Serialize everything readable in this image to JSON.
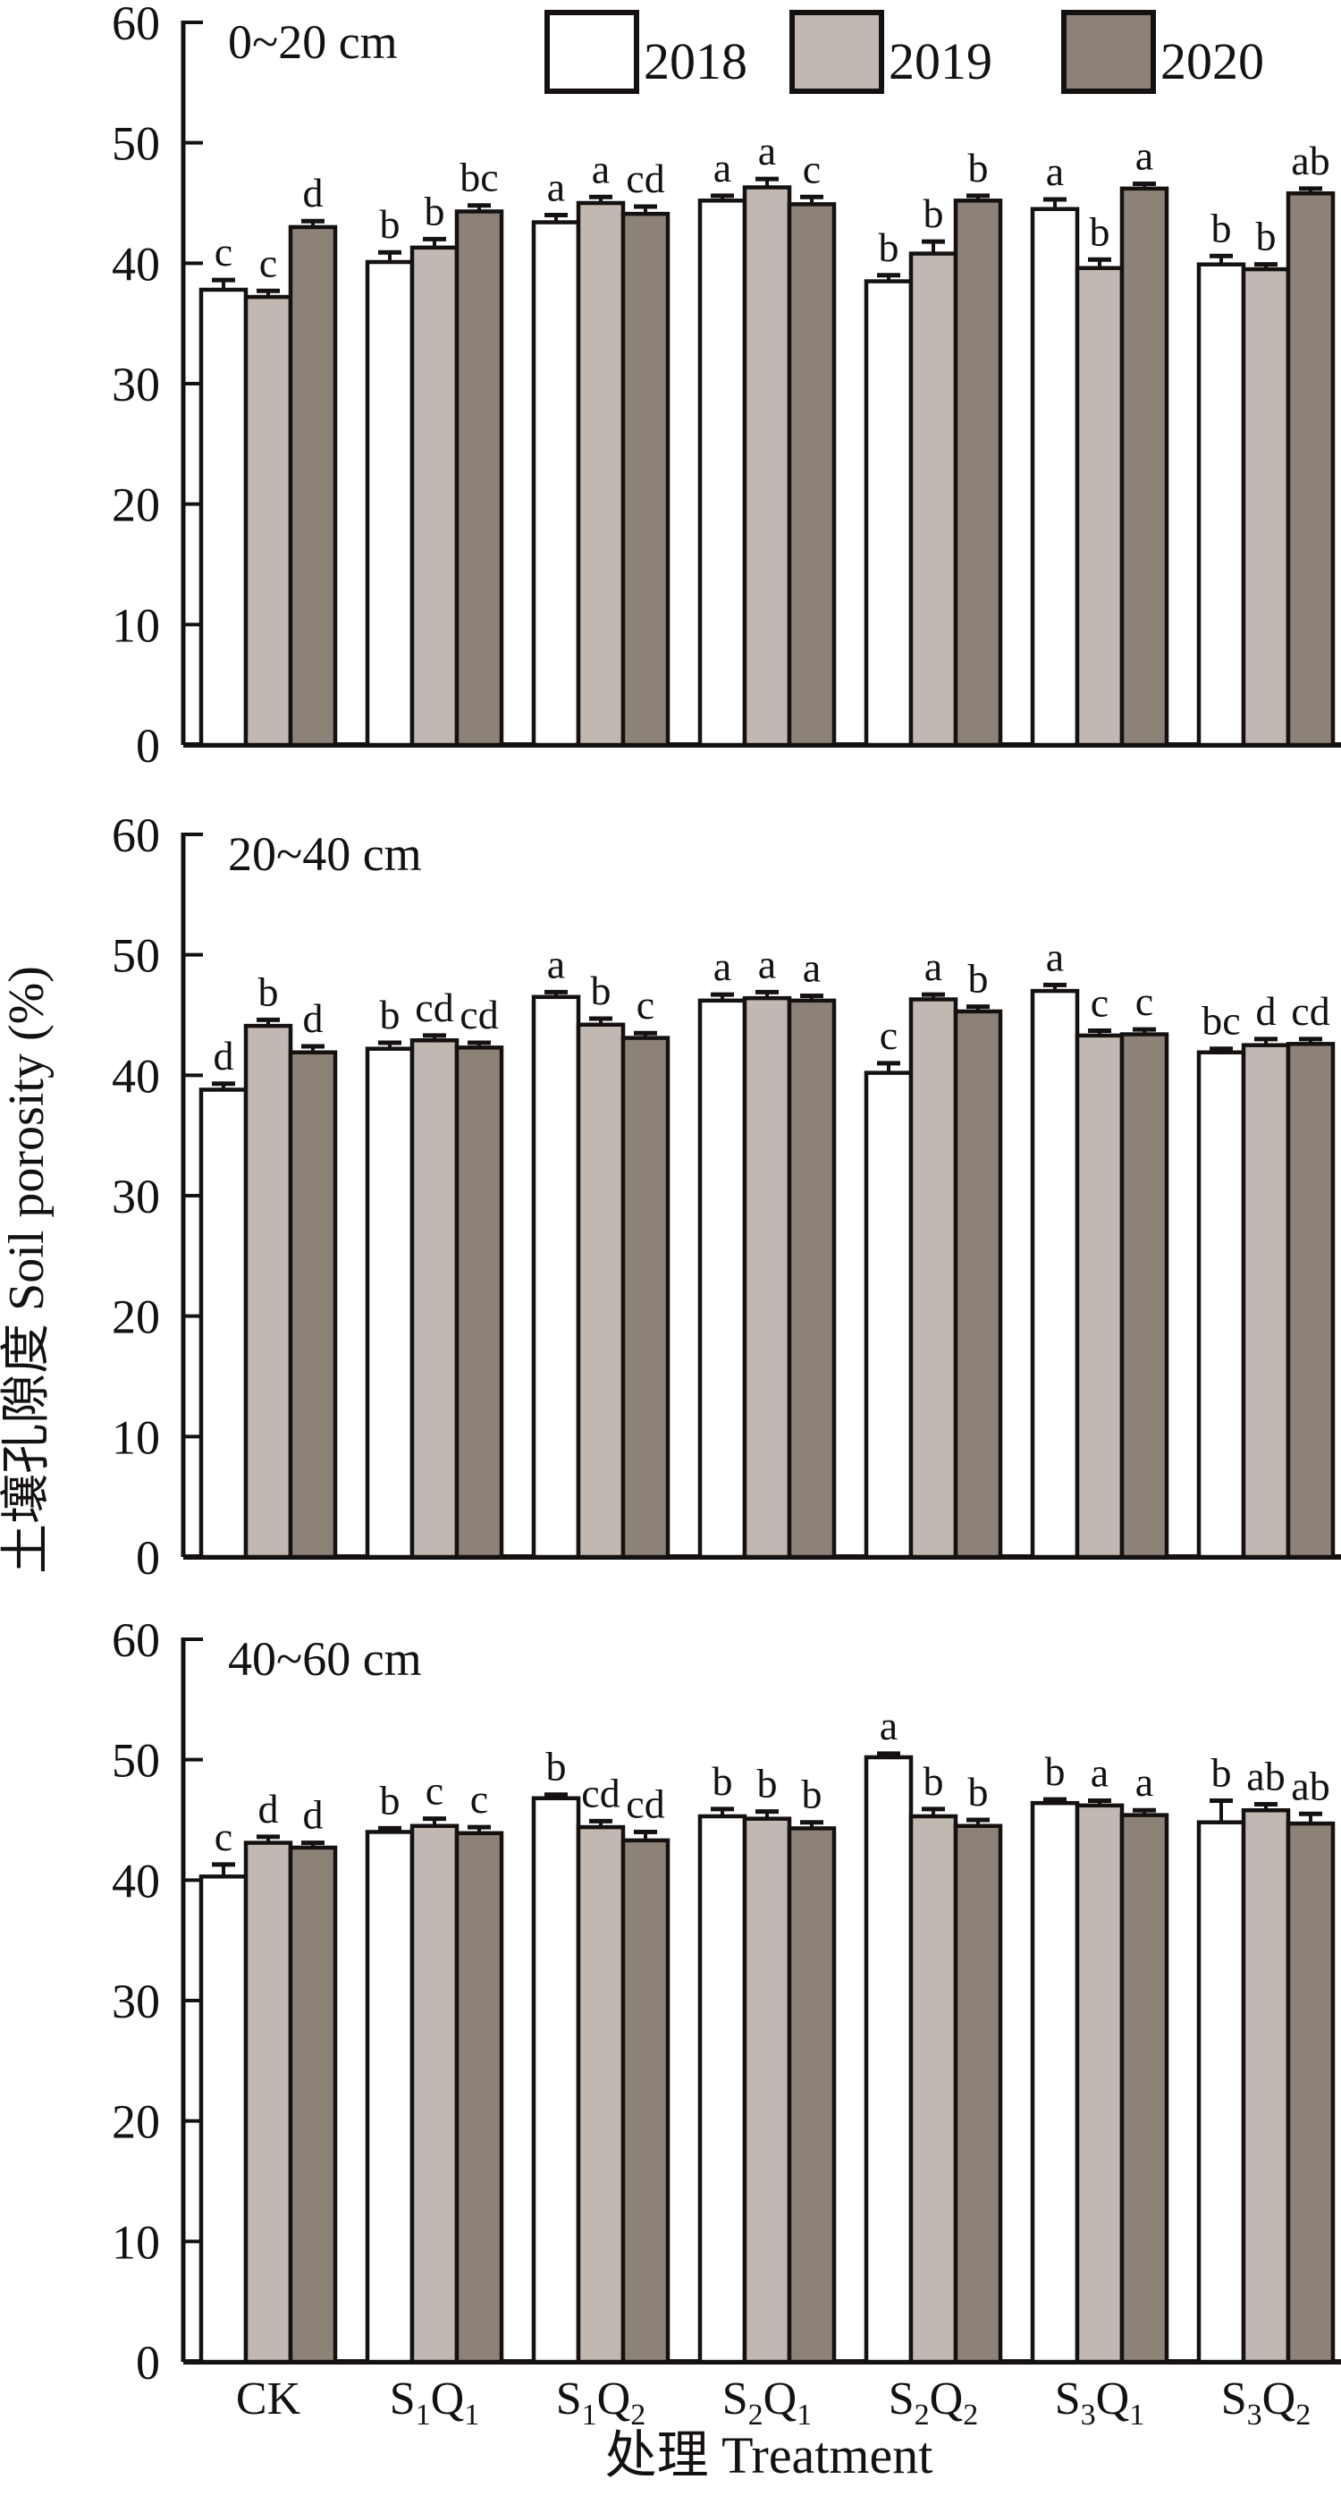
{
  "figure": {
    "y_axis_label": "土壤孔隙度 Soil porosity (%)",
    "x_axis_label": "处理 Treatment"
  },
  "chart_data": {
    "type": "bar",
    "grid": false,
    "legend_position": "top",
    "ylim": [
      0,
      60
    ],
    "yticks": [
      0,
      10,
      20,
      30,
      40,
      50,
      60
    ],
    "ylabel": "土壤孔隙度 Soil porosity (%)",
    "xlabel": "处理 Treatment",
    "categories": [
      "CK",
      "S1Q1",
      "S1Q2",
      "S2Q1",
      "S2Q2",
      "S3Q1",
      "S3Q2"
    ],
    "series_meta": [
      {
        "name": "2018",
        "color": "#ffffff"
      },
      {
        "name": "2019",
        "color": "#c1b8b1"
      },
      {
        "name": "2020",
        "color": "#8d8278"
      }
    ],
    "panels": [
      {
        "title": "0~20 cm",
        "show_legend": true,
        "series": [
          {
            "name": "2018",
            "values": [
              37.8,
              40.1,
              43.4,
              45.2,
              38.5,
              44.5,
              39.9
            ],
            "errors": [
              0.8,
              0.8,
              0.6,
              0.4,
              0.5,
              0.8,
              0.7
            ],
            "letters": [
              "c",
              "b",
              "a",
              "a",
              "b",
              "a",
              "b"
            ]
          },
          {
            "name": "2019",
            "values": [
              37.2,
              41.3,
              45.0,
              46.3,
              40.8,
              39.6,
              39.5
            ],
            "errors": [
              0.5,
              0.7,
              0.5,
              0.7,
              1.0,
              0.7,
              0.4
            ],
            "letters": [
              "c",
              "b",
              "a",
              "a",
              "b",
              "b",
              "b"
            ]
          },
          {
            "name": "2020",
            "values": [
              43.0,
              44.3,
              44.1,
              44.9,
              45.2,
              46.2,
              45.8
            ],
            "errors": [
              0.5,
              0.5,
              0.6,
              0.6,
              0.4,
              0.4,
              0.4
            ],
            "letters": [
              "d",
              "bc",
              "cd",
              "c",
              "b",
              "a",
              "ab"
            ]
          }
        ]
      },
      {
        "title": "20~40 cm",
        "show_legend": false,
        "series": [
          {
            "name": "2018",
            "values": [
              38.8,
              42.2,
              46.5,
              46.2,
              40.2,
              47.0,
              41.9
            ],
            "errors": [
              0.5,
              0.5,
              0.4,
              0.5,
              0.8,
              0.5,
              0.3
            ],
            "letters": [
              "d",
              "b",
              "a",
              "a",
              "c",
              "a",
              "bc"
            ]
          },
          {
            "name": "2019",
            "values": [
              44.1,
              42.9,
              44.2,
              46.4,
              46.3,
              43.3,
              42.5
            ],
            "errors": [
              0.5,
              0.4,
              0.5,
              0.5,
              0.4,
              0.4,
              0.5
            ],
            "letters": [
              "b",
              "cd",
              "b",
              "a",
              "a",
              "c",
              "d"
            ]
          },
          {
            "name": "2020",
            "values": [
              41.9,
              42.3,
              43.1,
              46.2,
              45.3,
              43.4,
              42.6
            ],
            "errors": [
              0.5,
              0.4,
              0.4,
              0.4,
              0.4,
              0.4,
              0.4
            ],
            "letters": [
              "d",
              "cd",
              "c",
              "a",
              "b",
              "c",
              "cd"
            ]
          }
        ]
      },
      {
        "title": "40~60 cm",
        "show_legend": false,
        "series": [
          {
            "name": "2018",
            "values": [
              40.3,
              44.0,
              46.8,
              45.3,
              50.2,
              46.4,
              44.8
            ],
            "errors": [
              1.0,
              0.3,
              0.3,
              0.6,
              0.3,
              0.3,
              1.8
            ],
            "letters": [
              "c",
              "b",
              "b",
              "b",
              "a",
              "b",
              "b"
            ]
          },
          {
            "name": "2019",
            "values": [
              43.1,
              44.5,
              44.4,
              45.1,
              45.3,
              46.2,
              45.8
            ],
            "errors": [
              0.5,
              0.6,
              0.5,
              0.6,
              0.6,
              0.4,
              0.5
            ],
            "letters": [
              "d",
              "c",
              "cd",
              "b",
              "b",
              "a",
              "ab"
            ]
          },
          {
            "name": "2020",
            "values": [
              42.7,
              43.9,
              43.3,
              44.3,
              44.5,
              45.4,
              44.7
            ],
            "errors": [
              0.4,
              0.5,
              0.7,
              0.5,
              0.5,
              0.4,
              0.8
            ],
            "letters": [
              "d",
              "c",
              "cd",
              "b",
              "b",
              "a",
              "ab"
            ]
          }
        ]
      }
    ]
  }
}
